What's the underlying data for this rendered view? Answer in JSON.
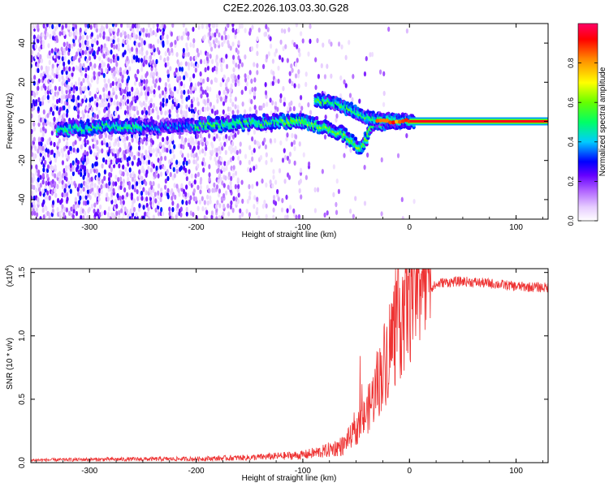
{
  "title": "C2E2.2026.103.03.30.G28",
  "chart_data": [
    {
      "type": "heatmap",
      "title": "C2E2.2026.103.03.30.G28",
      "xlabel": "Height of straight line (km)",
      "ylabel": "Frequency (Hz)",
      "xlim": [
        -355,
        130
      ],
      "ylim": [
        -50,
        50
      ],
      "xticks": [
        -300,
        -200,
        -100,
        0,
        100
      ],
      "xtick_labels": [
        "-300",
        "-200",
        "-100",
        "0",
        "100"
      ],
      "yticks": [
        -40,
        -20,
        0,
        20,
        40
      ],
      "ytick_labels": [
        "-40",
        "-20",
        "0",
        "20",
        "40"
      ],
      "colorbar": {
        "label": "Normalized spectral amplitude",
        "range": [
          0,
          1
        ],
        "ticks": [
          0.0,
          0.2,
          0.4,
          0.6,
          0.8
        ],
        "tick_labels": [
          "0.0",
          "0.2",
          "0.4",
          "0.6",
          "0.8"
        ],
        "colors": [
          "#ffffff",
          "#e6ccff",
          "#b266ff",
          "#6600ff",
          "#0000ff",
          "#00ccff",
          "#00ff66",
          "#66ff00",
          "#ffff00",
          "#ff8800",
          "#ff0000",
          "#ff0066"
        ]
      },
      "features": {
        "carrier_line": {
          "x_range": [
            0,
            130
          ],
          "frequency": 0,
          "amplitude": 1.0
        },
        "main_track": [
          [
            -320,
            -4
          ],
          [
            -280,
            -2
          ],
          [
            -240,
            -3
          ],
          [
            -200,
            -2
          ],
          [
            -160,
            -1
          ],
          [
            -120,
            0
          ],
          [
            -100,
            0
          ],
          [
            -80,
            -3
          ],
          [
            -60,
            -7
          ],
          [
            -45,
            -14
          ],
          [
            -35,
            -2
          ],
          [
            -20,
            0
          ],
          [
            0,
            0
          ]
        ],
        "upper_branch": [
          [
            -85,
            11
          ],
          [
            -70,
            9
          ],
          [
            -55,
            6
          ],
          [
            -45,
            3
          ],
          [
            -30,
            1
          ],
          [
            0,
            0
          ]
        ]
      }
    },
    {
      "type": "line",
      "xlabel": "Height of straight line (km)",
      "ylabel": "SNR (10 * v/v)",
      "scale_label": "(x10",
      "scale_exp": "4",
      "scale_close": ")",
      "xlim": [
        -355,
        130
      ],
      "ylim": [
        0,
        1.53
      ],
      "xticks": [
        -300,
        -200,
        -100,
        0,
        100
      ],
      "xtick_labels": [
        "-300",
        "-200",
        "-100",
        "0",
        "100"
      ],
      "yticks": [
        0,
        0.5,
        1.0,
        1.5
      ],
      "ytick_labels": [
        "0.0",
        "0.5",
        "1.0",
        "1.5"
      ],
      "color": "#ee3333",
      "envelope_x": [
        -355,
        -300,
        -200,
        -150,
        -100,
        -80,
        -60,
        -50,
        -40,
        -30,
        -20,
        -10,
        0,
        10,
        20,
        30,
        50,
        80,
        100,
        130
      ],
      "envelope_y": [
        0.02,
        0.025,
        0.03,
        0.04,
        0.06,
        0.09,
        0.14,
        0.2,
        0.32,
        0.5,
        0.72,
        0.95,
        1.12,
        1.28,
        1.38,
        1.42,
        1.43,
        1.41,
        1.39,
        1.38
      ]
    }
  ]
}
